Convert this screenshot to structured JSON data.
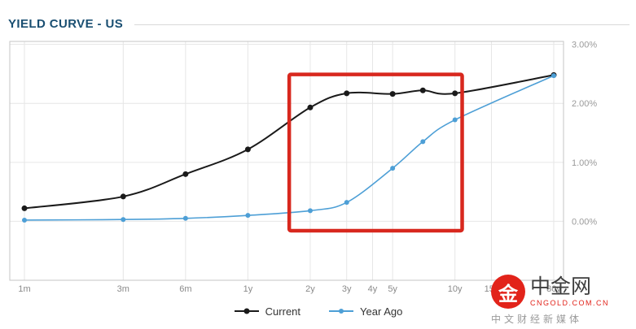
{
  "header": {
    "title": "YIELD CURVE - US"
  },
  "chart_data": {
    "type": "line",
    "title": "YIELD CURVE - US",
    "x_axis": {
      "scale": "log",
      "unit": "months",
      "ticks": [
        {
          "label": "1m",
          "months": 1
        },
        {
          "label": "3m",
          "months": 3
        },
        {
          "label": "6m",
          "months": 6
        },
        {
          "label": "1y",
          "months": 12
        },
        {
          "label": "2y",
          "months": 24
        },
        {
          "label": "3y",
          "months": 36
        },
        {
          "label": "4y",
          "months": 48
        },
        {
          "label": "5y",
          "months": 60
        },
        {
          "label": "10y",
          "months": 120
        },
        {
          "label": "15y",
          "months": 180
        },
        {
          "label": "30y",
          "months": 360
        }
      ]
    },
    "y_axis": {
      "range": [
        -1,
        3.05
      ],
      "ticks": [
        {
          "label": "0.00%",
          "value": 0
        },
        {
          "label": "1.00%",
          "value": 1
        },
        {
          "label": "2.00%",
          "value": 2
        },
        {
          "label": "3.00%",
          "value": 3
        }
      ]
    },
    "x_months": [
      1,
      3,
      6,
      12,
      24,
      36,
      60,
      84,
      120,
      360
    ],
    "series": [
      {
        "name": "Current",
        "color": "#1a1a1a",
        "marker_radius": 3.5,
        "values": [
          0.22,
          0.42,
          0.8,
          1.22,
          1.93,
          2.17,
          2.16,
          2.22,
          2.17,
          2.48
        ]
      },
      {
        "name": "Year Ago",
        "color": "#4d9fd6",
        "marker_radius": 3,
        "values": [
          0.02,
          0.03,
          0.05,
          0.1,
          0.18,
          0.32,
          0.9,
          1.35,
          1.72,
          2.47
        ]
      }
    ],
    "highlight_box": {
      "color": "#d8281e",
      "x_months": [
        19,
        130
      ],
      "y_values": [
        -0.16,
        2.49
      ]
    },
    "grid": true,
    "legend_position": "bottom"
  },
  "legend": {
    "items": [
      "Current",
      "Year Ago"
    ]
  },
  "watermark": {
    "site_name": "中金网",
    "site_domain": "CNGOLD.COM.CN",
    "site_tagline": "中文财经新媒体",
    "logo_glyph": "金",
    "brand_color": "#e2231a"
  }
}
